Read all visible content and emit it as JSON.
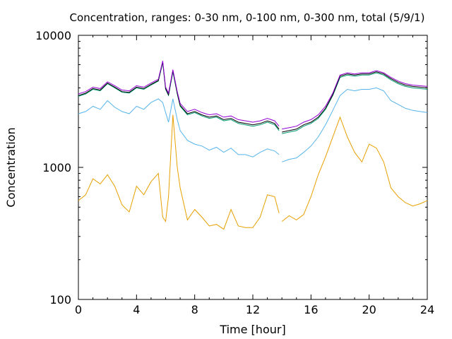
{
  "chart_data": {
    "type": "line",
    "title": "Concentration, ranges: 0-30 nm, 0-100 nm, 0-300 nm, total (5/9/1)",
    "xlabel": "Time [hour]",
    "ylabel": "Concentration",
    "xlim": [
      0,
      24
    ],
    "ylim": [
      100,
      10000
    ],
    "yscale": "log",
    "xticks": [
      0,
      4,
      8,
      12,
      16,
      20,
      24
    ],
    "xtick_labels": [
      "0",
      "4",
      "8",
      "12",
      "16",
      "20",
      "24"
    ],
    "yticks": [
      100,
      1000,
      10000
    ],
    "ytick_labels": [
      "100",
      "1000",
      "10000"
    ],
    "grid": false,
    "legend": "none",
    "gap": [
      13.8,
      14.0
    ],
    "x": [
      0,
      0.5,
      1,
      1.5,
      2,
      2.5,
      3,
      3.5,
      4,
      4.5,
      5,
      5.5,
      5.8,
      6.0,
      6.2,
      6.5,
      6.8,
      7,
      7.5,
      8,
      8.5,
      9,
      9.5,
      10,
      10.5,
      11,
      11.5,
      12,
      12.5,
      13,
      13.5,
      13.8,
      14.0,
      14.5,
      15,
      15.5,
      16,
      16.5,
      17,
      17.5,
      18,
      18.5,
      19,
      19.5,
      20,
      20.5,
      21,
      21.5,
      22,
      22.5,
      23,
      23.5,
      24
    ],
    "series": [
      {
        "color": "#e6a000",
        "values": [
          560,
          620,
          820,
          750,
          880,
          720,
          520,
          460,
          720,
          620,
          780,
          900,
          420,
          390,
          600,
          2500,
          1000,
          700,
          400,
          480,
          420,
          360,
          370,
          340,
          480,
          360,
          350,
          350,
          420,
          620,
          600,
          450,
          390,
          430,
          400,
          440,
          600,
          880,
          1200,
          1700,
          2400,
          1700,
          1300,
          1100,
          1500,
          1400,
          1100,
          700,
          600,
          540,
          510,
          530,
          560
        ]
      },
      {
        "color": "#56b4e9",
        "values": [
          2550,
          2650,
          2900,
          2750,
          3200,
          2850,
          2650,
          2550,
          2900,
          2750,
          3100,
          3300,
          3100,
          2600,
          2200,
          3300,
          2300,
          1900,
          1600,
          1500,
          1450,
          1350,
          1420,
          1300,
          1400,
          1250,
          1250,
          1200,
          1300,
          1380,
          1330,
          1250,
          1100,
          1150,
          1180,
          1300,
          1450,
          1700,
          2100,
          2700,
          3500,
          3900,
          3800,
          3900,
          3900,
          4000,
          3800,
          3200,
          3000,
          2800,
          2700,
          2650,
          2600
        ]
      },
      {
        "color": "#009e73",
        "values": [
          3450,
          3600,
          3900,
          3800,
          4300,
          4000,
          3700,
          3650,
          4000,
          3900,
          4200,
          4500,
          6200,
          3900,
          3500,
          5300,
          3600,
          2900,
          2500,
          2600,
          2450,
          2350,
          2400,
          2250,
          2300,
          2150,
          2100,
          2050,
          2100,
          2200,
          2100,
          1900,
          1800,
          1850,
          1900,
          2050,
          2150,
          2350,
          2750,
          3500,
          4800,
          5000,
          4900,
          5000,
          5000,
          5200,
          5000,
          4600,
          4300,
          4100,
          4000,
          3950,
          3900
        ]
      },
      {
        "color": "#000000",
        "values": [
          3500,
          3650,
          3950,
          3850,
          4350,
          4050,
          3750,
          3700,
          4050,
          3950,
          4250,
          4550,
          6300,
          3950,
          3550,
          5400,
          3650,
          2950,
          2550,
          2650,
          2500,
          2400,
          2450,
          2300,
          2350,
          2200,
          2150,
          2100,
          2150,
          2250,
          2150,
          1950,
          1850,
          1900,
          1950,
          2100,
          2200,
          2400,
          2800,
          3550,
          4900,
          5100,
          5000,
          5100,
          5100,
          5300,
          5100,
          4700,
          4400,
          4200,
          4100,
          4050,
          4000
        ]
      },
      {
        "color": "#9400d3",
        "values": [
          3600,
          3750,
          4050,
          3950,
          4450,
          4150,
          3850,
          3800,
          4150,
          4050,
          4350,
          4650,
          6400,
          4050,
          3650,
          5500,
          3750,
          3050,
          2650,
          2750,
          2600,
          2500,
          2550,
          2400,
          2450,
          2300,
          2250,
          2200,
          2250,
          2350,
          2250,
          2050,
          1950,
          2000,
          2050,
          2200,
          2300,
          2500,
          2900,
          3650,
          5000,
          5200,
          5100,
          5200,
          5200,
          5400,
          5200,
          4800,
          4500,
          4300,
          4200,
          4150,
          4100
        ]
      }
    ]
  }
}
